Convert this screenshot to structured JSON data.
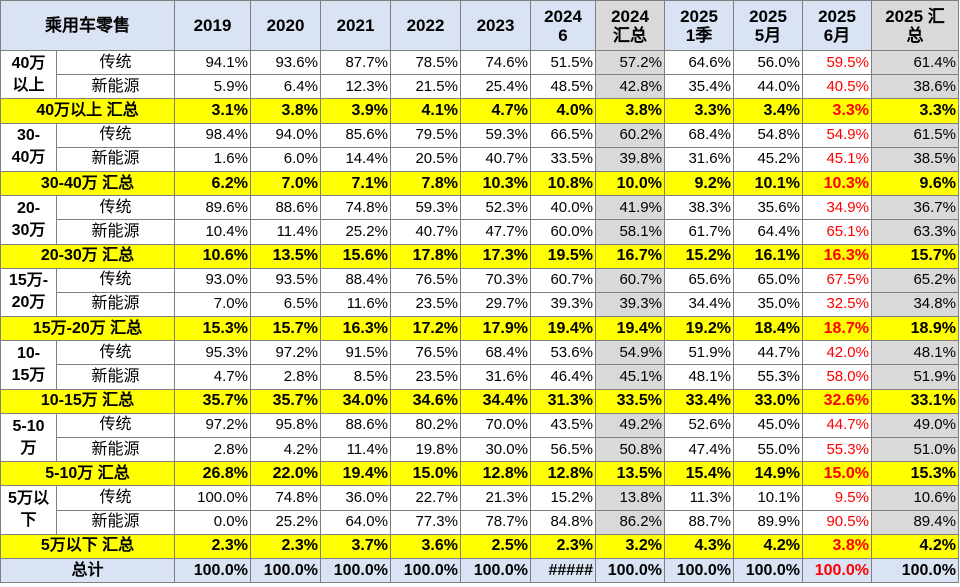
{
  "headers": [
    "乘用车零售",
    "2019",
    "2020",
    "2021",
    "2022",
    "2023",
    "2024\n6",
    "2024\n汇总",
    "2025\n1季",
    "2025\n5月",
    "2025\n6月",
    "2025 汇\n总"
  ],
  "sub_labels": [
    "传统",
    "新能源"
  ],
  "groups": [
    {
      "name": "40万\n以上",
      "rows": [
        [
          "94.1%",
          "93.6%",
          "87.7%",
          "78.5%",
          "74.6%",
          "51.5%",
          "57.2%",
          "64.6%",
          "56.0%",
          "59.5%",
          "61.4%"
        ],
        [
          "5.9%",
          "6.4%",
          "12.3%",
          "21.5%",
          "25.4%",
          "48.5%",
          "42.8%",
          "35.4%",
          "44.0%",
          "40.5%",
          "38.6%"
        ]
      ],
      "total_label": "40万以上 汇总",
      "total": [
        "3.1%",
        "3.8%",
        "3.9%",
        "4.1%",
        "4.7%",
        "4.0%",
        "3.8%",
        "3.3%",
        "3.4%",
        "3.3%",
        "3.3%"
      ]
    },
    {
      "name": "30-\n40万",
      "rows": [
        [
          "98.4%",
          "94.0%",
          "85.6%",
          "79.5%",
          "59.3%",
          "66.5%",
          "60.2%",
          "68.4%",
          "54.8%",
          "54.9%",
          "61.5%"
        ],
        [
          "1.6%",
          "6.0%",
          "14.4%",
          "20.5%",
          "40.7%",
          "33.5%",
          "39.8%",
          "31.6%",
          "45.2%",
          "45.1%",
          "38.5%"
        ]
      ],
      "total_label": "30-40万 汇总",
      "total": [
        "6.2%",
        "7.0%",
        "7.1%",
        "7.8%",
        "10.3%",
        "10.8%",
        "10.0%",
        "9.2%",
        "10.1%",
        "10.3%",
        "9.6%"
      ]
    },
    {
      "name": "20-\n30万",
      "rows": [
        [
          "89.6%",
          "88.6%",
          "74.8%",
          "59.3%",
          "52.3%",
          "40.0%",
          "41.9%",
          "38.3%",
          "35.6%",
          "34.9%",
          "36.7%"
        ],
        [
          "10.4%",
          "11.4%",
          "25.2%",
          "40.7%",
          "47.7%",
          "60.0%",
          "58.1%",
          "61.7%",
          "64.4%",
          "65.1%",
          "63.3%"
        ]
      ],
      "total_label": "20-30万 汇总",
      "total": [
        "10.6%",
        "13.5%",
        "15.6%",
        "17.8%",
        "17.3%",
        "19.5%",
        "16.7%",
        "15.2%",
        "16.1%",
        "16.3%",
        "15.7%"
      ]
    },
    {
      "name": "15万-\n20万",
      "rows": [
        [
          "93.0%",
          "93.5%",
          "88.4%",
          "76.5%",
          "70.3%",
          "60.7%",
          "60.7%",
          "65.6%",
          "65.0%",
          "67.5%",
          "65.2%"
        ],
        [
          "7.0%",
          "6.5%",
          "11.6%",
          "23.5%",
          "29.7%",
          "39.3%",
          "39.3%",
          "34.4%",
          "35.0%",
          "32.5%",
          "34.8%"
        ]
      ],
      "total_label": "15万-20万 汇总",
      "total": [
        "15.3%",
        "15.7%",
        "16.3%",
        "17.2%",
        "17.9%",
        "19.4%",
        "19.4%",
        "19.2%",
        "18.4%",
        "18.7%",
        "18.9%"
      ]
    },
    {
      "name": "10-\n15万",
      "rows": [
        [
          "95.3%",
          "97.2%",
          "91.5%",
          "76.5%",
          "68.4%",
          "53.6%",
          "54.9%",
          "51.9%",
          "44.7%",
          "42.0%",
          "48.1%"
        ],
        [
          "4.7%",
          "2.8%",
          "8.5%",
          "23.5%",
          "31.6%",
          "46.4%",
          "45.1%",
          "48.1%",
          "55.3%",
          "58.0%",
          "51.9%"
        ]
      ],
      "total_label": "10-15万 汇总",
      "total": [
        "35.7%",
        "35.7%",
        "34.0%",
        "34.6%",
        "34.4%",
        "31.3%",
        "33.5%",
        "33.4%",
        "33.0%",
        "32.6%",
        "33.1%"
      ]
    },
    {
      "name": "5-10\n万",
      "rows": [
        [
          "97.2%",
          "95.8%",
          "88.6%",
          "80.2%",
          "70.0%",
          "43.5%",
          "49.2%",
          "52.6%",
          "45.0%",
          "44.7%",
          "49.0%"
        ],
        [
          "2.8%",
          "4.2%",
          "11.4%",
          "19.8%",
          "30.0%",
          "56.5%",
          "50.8%",
          "47.4%",
          "55.0%",
          "55.3%",
          "51.0%"
        ]
      ],
      "total_label": "5-10万 汇总",
      "total": [
        "26.8%",
        "22.0%",
        "19.4%",
        "15.0%",
        "12.8%",
        "12.8%",
        "13.5%",
        "15.4%",
        "14.9%",
        "15.0%",
        "15.3%"
      ]
    },
    {
      "name": "5万以\n下",
      "rows": [
        [
          "100.0%",
          "74.8%",
          "36.0%",
          "22.7%",
          "21.3%",
          "15.2%",
          "13.8%",
          "11.3%",
          "10.1%",
          "9.5%",
          "10.6%"
        ],
        [
          "0.0%",
          "25.2%",
          "64.0%",
          "77.3%",
          "78.7%",
          "84.8%",
          "86.2%",
          "88.7%",
          "89.9%",
          "90.5%",
          "89.4%"
        ]
      ],
      "total_label": "5万以下 汇总",
      "total": [
        "2.3%",
        "2.3%",
        "3.7%",
        "3.6%",
        "2.5%",
        "2.3%",
        "3.2%",
        "4.3%",
        "4.2%",
        "3.8%",
        "4.2%"
      ]
    }
  ],
  "grand_total_label": "总计",
  "grand_total": [
    "100.0%",
    "100.0%",
    "100.0%",
    "100.0%",
    "100.0%",
    "#####",
    "100.0%",
    "100.0%",
    "100.0%",
    "100.0%",
    "100.0%"
  ],
  "colors": {
    "header_bg": "#dae3f3",
    "total_bg": "#ffff00",
    "shaded_col_bg": "#d9d9d9",
    "highlight_text": "#ff0000"
  }
}
